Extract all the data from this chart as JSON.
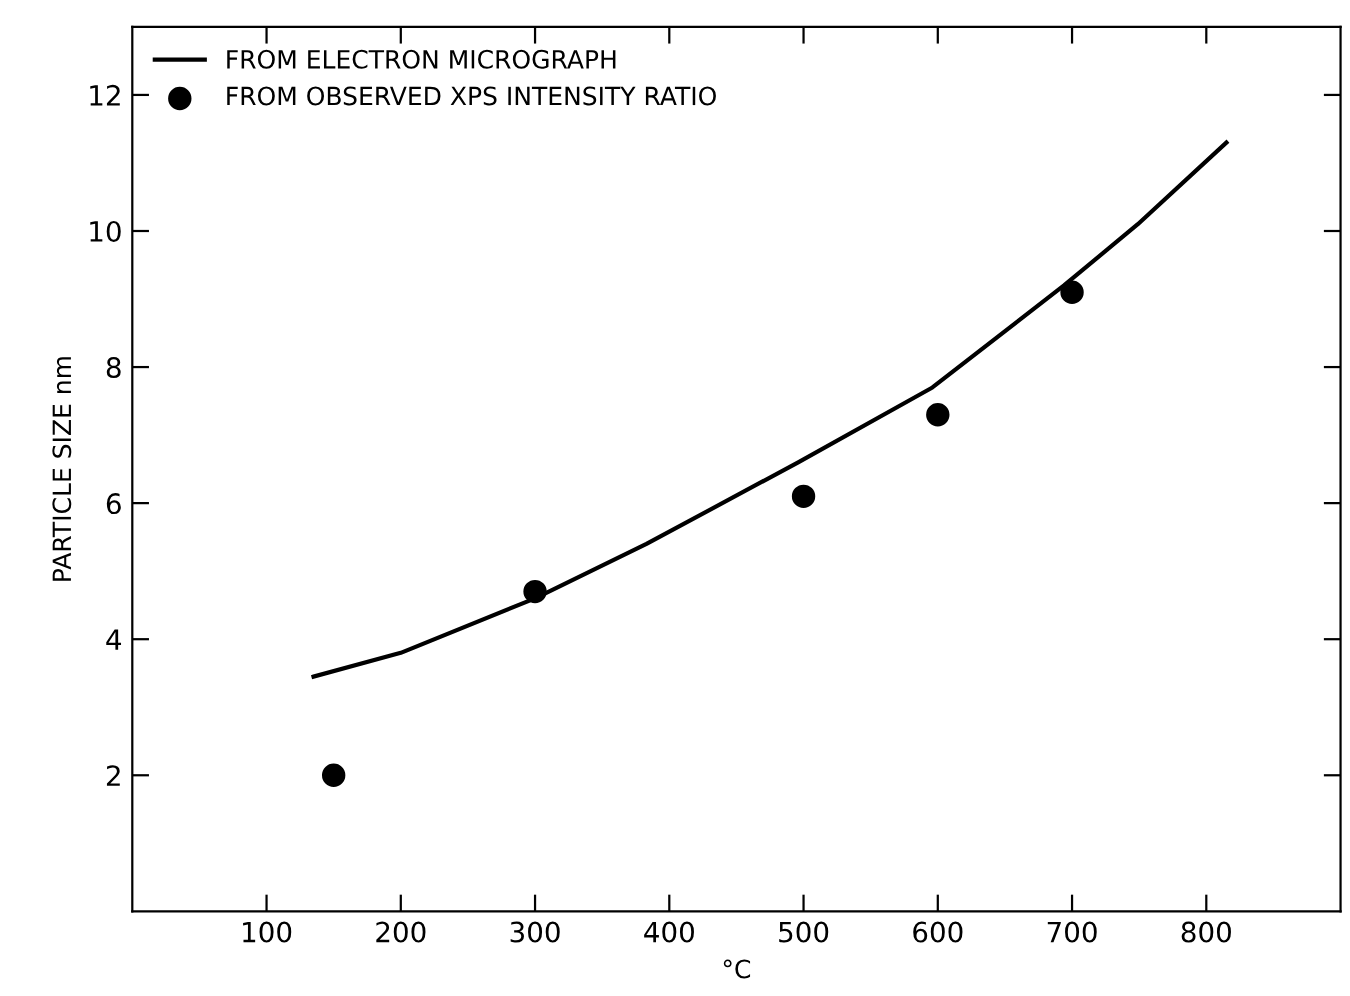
{
  "chart_data": {
    "type": "line",
    "xlabel": "°C",
    "ylabel": "PARTICLE SIZE nm",
    "xlim": [
      0,
      900
    ],
    "ylim": [
      0,
      13
    ],
    "xticks": [
      100,
      200,
      300,
      400,
      500,
      600,
      700,
      800
    ],
    "yticks": [
      2,
      4,
      6,
      8,
      10,
      12
    ],
    "grid": false,
    "legend": "top left",
    "series": [
      {
        "name": "FROM ELECTRON MICROGRAPH",
        "color": "#000000",
        "marker": "none",
        "line_style": "solid",
        "x": [
          135,
          200,
          300,
          383,
          496,
          596,
          694,
          749,
          815
        ],
        "values": [
          3.45,
          3.8,
          4.6,
          5.4,
          6.6,
          7.7,
          9.2,
          10.1,
          11.3
        ]
      },
      {
        "name": "FROM OBSERVED XPS INTENSITY RATIO",
        "type": "scatter",
        "color": "#000000",
        "marker": "circle",
        "x": [
          150,
          300,
          500,
          600,
          700
        ],
        "values": [
          2.0,
          4.7,
          6.1,
          7.3,
          9.1
        ]
      }
    ]
  }
}
